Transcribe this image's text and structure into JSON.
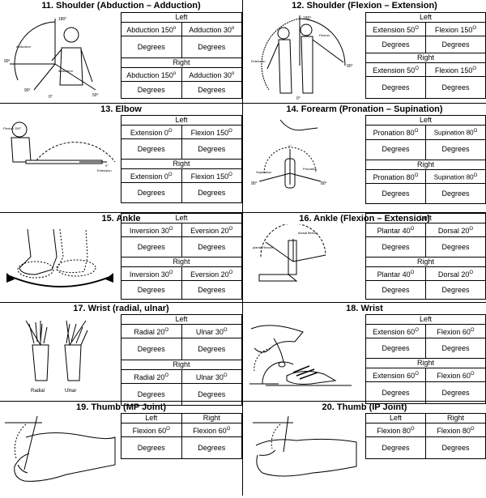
{
  "sections": [
    {
      "id": "11",
      "title": "11. Shoulder (Abduction – Adduction)",
      "left_label": "Left",
      "right_label": "Right",
      "left": [
        {
          "text": "Abduction 150",
          "deg": "o"
        },
        {
          "text": "Adduction 30",
          "deg": "o"
        }
      ],
      "right": [
        {
          "text": "Abduction 150",
          "deg": "o"
        },
        {
          "text": "Adduction 30",
          "deg": "o"
        }
      ],
      "degrees": "Degrees",
      "illus_labels": [
        "180°",
        "Abduction",
        "Adduction",
        "90°",
        "90°",
        "0°",
        "50°"
      ]
    },
    {
      "id": "12",
      "title": "12. Shoulder (Flexion – Extension)",
      "left_label": "Left",
      "right_label": "Right",
      "left": [
        {
          "text": "Extension 50",
          "deg": "O"
        },
        {
          "text": "Flexion 150",
          "deg": "O"
        }
      ],
      "right": [
        {
          "text": "Extension 50",
          "deg": "O"
        },
        {
          "text": "Flexion 150",
          "deg": "O"
        }
      ],
      "degrees": "Degrees",
      "illus_labels": [
        "180°",
        "Extension",
        "Flexion",
        "90°",
        "0°"
      ]
    },
    {
      "id": "13",
      "title": "13. Elbow",
      "left_label": "Left",
      "right_label": "Right",
      "left": [
        {
          "text": "Extension 0",
          "deg": "O"
        },
        {
          "text": "Flexion 150",
          "deg": "O"
        }
      ],
      "right": [
        {
          "text": "Extension 0",
          "deg": "O"
        },
        {
          "text": "Flexion 150",
          "deg": "O"
        }
      ],
      "degrees": "Degrees",
      "illus_labels": [
        "Flexion 150°",
        "0°",
        "Extension"
      ]
    },
    {
      "id": "14",
      "title": "14. Forearm (Pronation –  Supination)",
      "left_label": "Left",
      "right_label": "Right",
      "left": [
        {
          "text": "Pronation 80",
          "deg": "O"
        },
        {
          "text": "Supination 80",
          "deg": "O"
        }
      ],
      "right": [
        {
          "text": "Pronation 80",
          "deg": "O"
        },
        {
          "text": "Supination 80",
          "deg": "O"
        }
      ],
      "degrees": "Degrees",
      "illus_labels": [
        "0°",
        "Supination",
        "Pronation",
        "90°",
        "80°"
      ]
    },
    {
      "id": "15",
      "title": "15. Ankle",
      "left_label": "Left",
      "right_label": "Right",
      "left": [
        {
          "text": "Inversion 30",
          "deg": "O"
        },
        {
          "text": "Eversion 20",
          "deg": "O"
        }
      ],
      "right": [
        {
          "text": "Inversion 30",
          "deg": "O"
        },
        {
          "text": "Eversion 20",
          "deg": "O"
        }
      ],
      "degrees": "Degrees"
    },
    {
      "id": "16",
      "title": "16. Ankle (Flexion – Extension)",
      "left_label": "Left",
      "right_label": "Right",
      "left": [
        {
          "text": "Plantar 40",
          "deg": "O"
        },
        {
          "text": "Dorsal 20",
          "deg": "O"
        }
      ],
      "right": [
        {
          "text": "Plantar 40",
          "deg": "O"
        },
        {
          "text": "Dorsal 20",
          "deg": "O"
        }
      ],
      "degrees": "Degrees",
      "illus_labels": [
        "plantar flexion",
        "dorsal flexion"
      ]
    },
    {
      "id": "17",
      "title": "17. Wrist (radial, ulnar)",
      "left_label": "Left",
      "right_label": "Right",
      "left": [
        {
          "text": "Radial 20",
          "deg": "O"
        },
        {
          "text": "Ulnar 30",
          "deg": "O"
        }
      ],
      "right": [
        {
          "text": "Radial 20",
          "deg": "O"
        },
        {
          "text": "Ulnar 30",
          "deg": "O"
        }
      ],
      "degrees": "Degrees",
      "illus_labels": [
        "Radial",
        "Ulnar"
      ]
    },
    {
      "id": "18",
      "title": "18. Wrist",
      "left_label": "Left",
      "right_label": "Right",
      "left": [
        {
          "text": "Extension 60",
          "deg": "O"
        },
        {
          "text": "Flexion 60",
          "deg": "O"
        }
      ],
      "right": [
        {
          "text": "Extension 60",
          "deg": "O"
        },
        {
          "text": "Flexion 60",
          "deg": "O"
        }
      ],
      "degrees": "Degrees"
    },
    {
      "id": "19",
      "title": "19. Thumb (MP Joint)",
      "left_label": "Left",
      "right_label": "Right",
      "left": [
        {
          "text": "Flexion 60",
          "deg": "O"
        }
      ],
      "right": [
        {
          "text": "Flexion 60",
          "deg": "O"
        }
      ],
      "degrees": "Degrees"
    },
    {
      "id": "20",
      "title": "20. Thumb (IP Joint)",
      "left_label": "Left",
      "right_label": "Right",
      "left": [
        {
          "text": "Flexion 80",
          "deg": "O"
        }
      ],
      "right": [
        {
          "text": "Flexion 80",
          "deg": "O"
        }
      ],
      "degrees": "Degrees"
    }
  ]
}
